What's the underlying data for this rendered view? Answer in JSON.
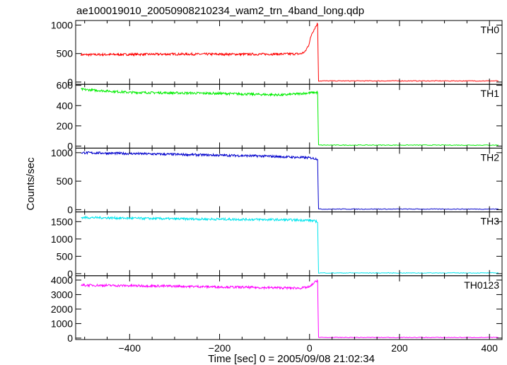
{
  "title": "ae100019010_20050908210234_wam2_trn_4band_long.qdp",
  "ylabel": "Counts/sec",
  "xlabel": "Time [sec] 0 = 2005/09/08 21:02:34",
  "chart_data": {
    "type": "line",
    "xlim": [
      -520,
      428
    ],
    "x_ticks": [
      -400,
      -200,
      0,
      200,
      400
    ],
    "panels": [
      {
        "name": "TH0",
        "color": "#ff0000",
        "ylim": [
          -40,
          1080
        ],
        "ticks": [
          0,
          500,
          1000
        ],
        "shape": [
          [
            -508,
            480
          ],
          [
            -300,
            490
          ],
          [
            -120,
            488
          ],
          [
            -20,
            495
          ],
          [
            -10,
            530
          ],
          [
            -2,
            650
          ],
          [
            5,
            850
          ],
          [
            12,
            950
          ],
          [
            18,
            1030
          ],
          [
            20,
            20
          ],
          [
            420,
            20
          ]
        ]
      },
      {
        "name": "TH1",
        "color": "#00ee00",
        "ylim": [
          -20,
          610
        ],
        "ticks": [
          0,
          200,
          400,
          600
        ],
        "shape": [
          [
            -508,
            560
          ],
          [
            -400,
            530
          ],
          [
            -200,
            520
          ],
          [
            -60,
            505
          ],
          [
            0,
            525
          ],
          [
            18,
            530
          ],
          [
            20,
            10
          ],
          [
            420,
            10
          ]
        ]
      },
      {
        "name": "TH2",
        "color": "#0000cc",
        "ylim": [
          -40,
          1080
        ],
        "ticks": [
          0,
          500,
          1000
        ],
        "shape": [
          [
            -508,
            1000
          ],
          [
            -300,
            970
          ],
          [
            -100,
            940
          ],
          [
            0,
            910
          ],
          [
            18,
            890
          ],
          [
            20,
            10
          ],
          [
            420,
            10
          ]
        ]
      },
      {
        "name": "TH3",
        "color": "#00e5ee",
        "ylim": [
          -60,
          1780
        ],
        "ticks": [
          0,
          500,
          1000,
          1500
        ],
        "shape": [
          [
            -508,
            1620
          ],
          [
            -300,
            1580
          ],
          [
            -100,
            1560
          ],
          [
            0,
            1540
          ],
          [
            18,
            1500
          ],
          [
            20,
            20
          ],
          [
            420,
            20
          ]
        ]
      },
      {
        "name": "TH0123",
        "color": "#ff00ff",
        "ylim": [
          -100,
          4300
        ],
        "ticks": [
          0,
          1000,
          2000,
          3000,
          4000
        ],
        "shape": [
          [
            -508,
            3650
          ],
          [
            -300,
            3580
          ],
          [
            -100,
            3480
          ],
          [
            -20,
            3450
          ],
          [
            0,
            3520
          ],
          [
            10,
            3800
          ],
          [
            18,
            4000
          ],
          [
            20,
            40
          ],
          [
            420,
            40
          ]
        ]
      }
    ]
  }
}
